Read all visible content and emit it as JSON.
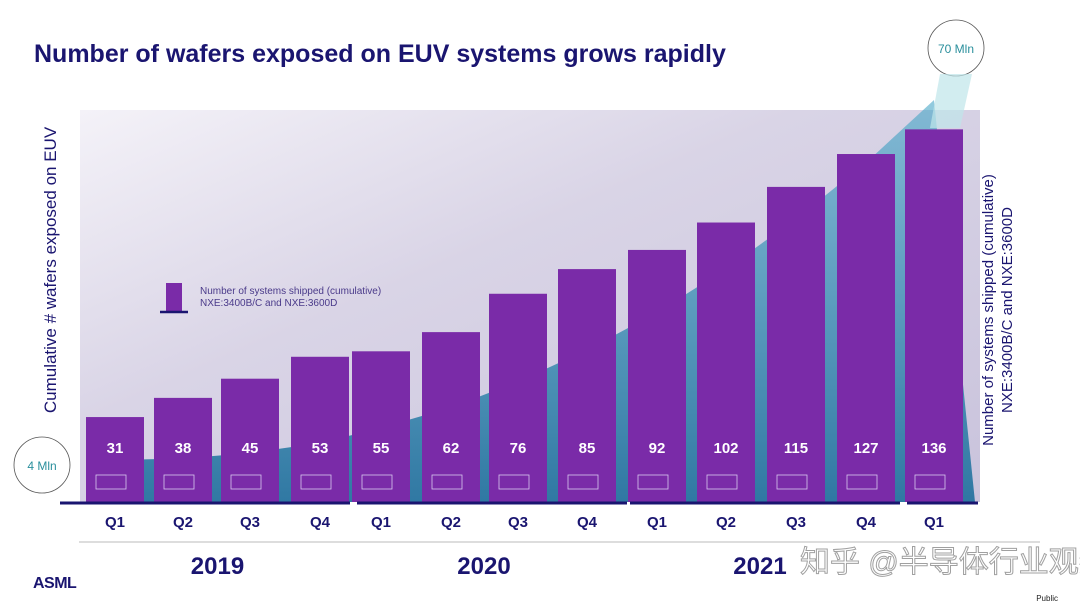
{
  "title": "Number of wafers exposed on EUV systems grows rapidly",
  "logo": "ASML",
  "classification": "Public",
  "watermark": "知乎 @半导体行业观察",
  "chart_data": {
    "type": "bar",
    "title": "Number of wafers exposed on EUV systems grows rapidly",
    "categories": [
      "Q1",
      "Q2",
      "Q3",
      "Q4",
      "Q1",
      "Q2",
      "Q3",
      "Q4",
      "Q1",
      "Q2",
      "Q3",
      "Q4",
      "Q1"
    ],
    "groups": [
      {
        "label": "2019",
        "count": 4
      },
      {
        "label": "2020",
        "count": 4
      },
      {
        "label": "2021",
        "count": 5
      }
    ],
    "values": [
      31,
      38,
      45,
      53,
      55,
      62,
      76,
      85,
      92,
      102,
      115,
      127,
      136
    ],
    "ylabel_left": "Cumulative # wafers exposed on EUV",
    "ylabel_right": [
      "Number of systems shipped (cumulative)",
      "NXE:3400B/C and NXE:3600D"
    ],
    "legend": [
      "Number of systems shipped (cumulative)",
      "NXE:3400B/C and NXE:3600D"
    ],
    "legend_placement": "left-middle",
    "wafer_start_label": "4 Mln",
    "wafer_end_label": "70 Mln",
    "colors": {
      "bar": "#7a2ba8",
      "axis": "#1a1570",
      "wafers_area": "#2a8fb0",
      "label": "#1a1570"
    }
  }
}
